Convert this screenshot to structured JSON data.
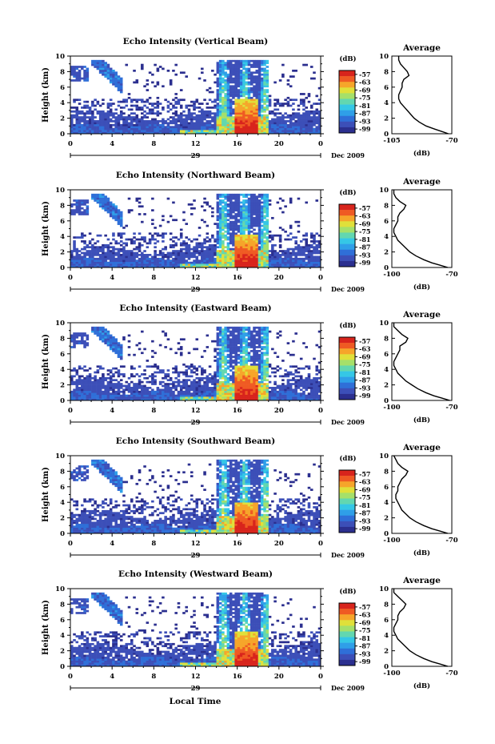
{
  "colors": {
    "scale": [
      "#2b2f8f",
      "#3c4fb8",
      "#2f6fd8",
      "#2f9fe8",
      "#35c7e6",
      "#62d7b0",
      "#a5e06a",
      "#e0e03a",
      "#f6a52a",
      "#ef5a23",
      "#d8241c"
    ],
    "cutoff_color": "#1e1e6e"
  },
  "figure": {
    "x_title": "Local Time",
    "date_label": "Dec 2009",
    "day_label": "29",
    "y_label": "Height (km)",
    "cbar_unit": "(dB)",
    "avg_title": "Average",
    "avg_xlabel": "(dB)"
  },
  "chart_data": [
    {
      "type": "heatmap",
      "title": "Echo Intensity (Vertical Beam)",
      "xlabel": "Local Time",
      "ylabel": "Height (km)",
      "x_ticks": [
        "0",
        "4",
        "8",
        "12",
        "16",
        "20",
        "0"
      ],
      "y_ticks": [
        "0",
        "2",
        "4",
        "6",
        "8",
        "10"
      ],
      "xlim": [
        0,
        24
      ],
      "ylim": [
        0,
        10
      ],
      "colorbar": {
        "label": "(dB)",
        "ticks": [
          "-57",
          "-63",
          "-69",
          "-75",
          "-81",
          "-87",
          "-93",
          "-99"
        ]
      },
      "features": {
        "storm_start": 14,
        "storm_peak": 17,
        "core_top": 4.5
      },
      "average_profile": {
        "title": "Average",
        "xlabel": "(dB)",
        "xlim": [
          -105,
          -70
        ],
        "x_ticks": [
          "-105",
          "-70"
        ],
        "y_ticks": [
          "0",
          "2",
          "4",
          "6",
          "8",
          "10"
        ],
        "height": [
          0,
          0.3,
          0.6,
          1,
          1.5,
          2,
          2.5,
          3,
          3.5,
          4,
          4.5,
          5,
          5.5,
          6,
          6.5,
          7,
          7.5,
          8,
          8.5,
          9,
          9.5,
          10
        ],
        "db": [
          -72,
          -76,
          -80,
          -85,
          -89,
          -92,
          -94,
          -96,
          -98,
          -100,
          -101,
          -101,
          -100,
          -99,
          -99,
          -98,
          -95,
          -96,
          -98,
          -100,
          -101,
          -101
        ]
      }
    },
    {
      "type": "heatmap",
      "title": "Echo Intensity (Northward Beam)",
      "xlabel": "Local Time",
      "ylabel": "Height (km)",
      "x_ticks": [
        "0",
        "4",
        "8",
        "12",
        "16",
        "20",
        "0"
      ],
      "y_ticks": [
        "0",
        "2",
        "4",
        "6",
        "8",
        "10"
      ],
      "xlim": [
        0,
        24
      ],
      "ylim": [
        0,
        10
      ],
      "colorbar": {
        "label": "(dB)",
        "ticks": [
          "-57",
          "-63",
          "-69",
          "-75",
          "-81",
          "-87",
          "-93",
          "-99"
        ]
      },
      "features": {
        "storm_start": 14,
        "storm_peak": 17,
        "core_top": 4.3
      },
      "average_profile": {
        "title": "Average",
        "xlabel": "(dB)",
        "xlim": [
          -100,
          -70
        ],
        "x_ticks": [
          "-100",
          "-70"
        ],
        "y_ticks": [
          "0",
          "2",
          "4",
          "6",
          "8",
          "10"
        ],
        "height": [
          0,
          0.3,
          0.6,
          1,
          1.5,
          2,
          2.5,
          3,
          3.5,
          4,
          4.5,
          5,
          5.5,
          6,
          6.5,
          7,
          7.5,
          8,
          8.5,
          9,
          9.5,
          10
        ],
        "db": [
          -72,
          -76,
          -80,
          -84,
          -88,
          -91,
          -93,
          -95,
          -97,
          -98,
          -99,
          -99,
          -98,
          -97,
          -97,
          -96,
          -94,
          -93,
          -96,
          -98,
          -99,
          -99
        ]
      }
    },
    {
      "type": "heatmap",
      "title": "Echo Intensity (Eastward Beam)",
      "xlabel": "Local Time",
      "ylabel": "Height (km)",
      "x_ticks": [
        "0",
        "4",
        "8",
        "12",
        "16",
        "20",
        "0"
      ],
      "y_ticks": [
        "0",
        "2",
        "4",
        "6",
        "8",
        "10"
      ],
      "xlim": [
        0,
        24
      ],
      "ylim": [
        0,
        10
      ],
      "colorbar": {
        "label": "(dB)",
        "ticks": [
          "-57",
          "-63",
          "-69",
          "-75",
          "-81",
          "-87",
          "-93",
          "-99"
        ]
      },
      "features": {
        "storm_start": 14,
        "storm_peak": 17,
        "core_top": 4.6
      },
      "average_profile": {
        "title": "Average",
        "xlabel": "(dB)",
        "xlim": [
          -100,
          -70
        ],
        "x_ticks": [
          "-100",
          "-70"
        ],
        "y_ticks": [
          "0",
          "2",
          "4",
          "6",
          "8",
          "10"
        ],
        "height": [
          0,
          0.3,
          0.6,
          1,
          1.5,
          2,
          2.5,
          3,
          3.5,
          4,
          4.5,
          5,
          5.5,
          6,
          6.5,
          7,
          7.5,
          8,
          8.5,
          9,
          9.5,
          10
        ],
        "db": [
          -71,
          -75,
          -79,
          -83,
          -87,
          -90,
          -93,
          -95,
          -97,
          -98,
          -99,
          -99,
          -98,
          -97,
          -96,
          -96,
          -93,
          -92,
          -95,
          -97,
          -99,
          -99
        ]
      }
    },
    {
      "type": "heatmap",
      "title": "Echo Intensity (Southward Beam)",
      "xlabel": "Local Time",
      "ylabel": "Height (km)",
      "x_ticks": [
        "0",
        "4",
        "8",
        "12",
        "16",
        "20",
        "0"
      ],
      "y_ticks": [
        "0",
        "2",
        "4",
        "6",
        "8",
        "10"
      ],
      "xlim": [
        0,
        24
      ],
      "ylim": [
        0,
        10
      ],
      "colorbar": {
        "label": "(dB)",
        "ticks": [
          "-57",
          "-63",
          "-69",
          "-75",
          "-81",
          "-87",
          "-93",
          "-99"
        ]
      },
      "features": {
        "storm_start": 14,
        "storm_peak": 17,
        "core_top": 4.0
      },
      "average_profile": {
        "title": "Average",
        "xlabel": "(dB)",
        "xlim": [
          -100,
          -70
        ],
        "x_ticks": [
          "-100",
          "-70"
        ],
        "y_ticks": [
          "0",
          "2",
          "4",
          "6",
          "8",
          "10"
        ],
        "height": [
          0,
          0.3,
          0.6,
          1,
          1.5,
          2,
          2.5,
          3,
          3.5,
          4,
          4.5,
          5,
          5.5,
          6,
          6.5,
          7,
          7.5,
          8,
          8.5,
          9,
          9.5,
          10
        ],
        "db": [
          -72,
          -76,
          -80,
          -84,
          -88,
          -91,
          -93,
          -95,
          -96,
          -97,
          -98,
          -98,
          -97,
          -97,
          -96,
          -95,
          -93,
          -92,
          -95,
          -97,
          -98,
          -99
        ]
      }
    },
    {
      "type": "heatmap",
      "title": "Echo Intensity (Westward Beam)",
      "xlabel": "Local Time",
      "ylabel": "Height (km)",
      "x_ticks": [
        "0",
        "4",
        "8",
        "12",
        "16",
        "20",
        "0"
      ],
      "y_ticks": [
        "0",
        "2",
        "4",
        "6",
        "8",
        "10"
      ],
      "xlim": [
        0,
        24
      ],
      "ylim": [
        0,
        10
      ],
      "colorbar": {
        "label": "(dB)",
        "ticks": [
          "-57",
          "-63",
          "-69",
          "-75",
          "-81",
          "-87",
          "-93",
          "-99"
        ]
      },
      "features": {
        "storm_start": 14,
        "storm_peak": 17,
        "core_top": 4.4
      },
      "average_profile": {
        "title": "Average",
        "xlabel": "(dB)",
        "xlim": [
          -100,
          -70
        ],
        "x_ticks": [
          "-100",
          "-70"
        ],
        "y_ticks": [
          "0",
          "2",
          "4",
          "6",
          "8",
          "10"
        ],
        "height": [
          0,
          0.3,
          0.6,
          1,
          1.5,
          2,
          2.5,
          3,
          3.5,
          4,
          4.5,
          5,
          5.5,
          6,
          6.5,
          7,
          7.5,
          8,
          8.5,
          9,
          9.5,
          10
        ],
        "db": [
          -72,
          -76,
          -80,
          -84,
          -88,
          -91,
          -93,
          -95,
          -97,
          -98,
          -99,
          -99,
          -98,
          -97,
          -97,
          -96,
          -94,
          -93,
          -95,
          -97,
          -99,
          -99
        ]
      }
    }
  ]
}
